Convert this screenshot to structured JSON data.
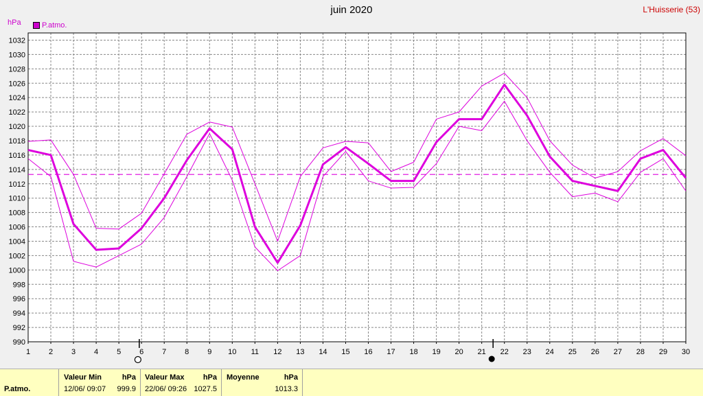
{
  "title": "juin 2020",
  "station": "L'Huisserie (53)",
  "legend": {
    "label": "P.atmo.",
    "color": "#cc00cc"
  },
  "colors": {
    "series": "#dd00dd",
    "mean_line": "#dd00dd",
    "grid": "#888888",
    "plot_bg": "#ffffff",
    "page_bg": "#f0f0f0",
    "station_text": "#cc0000",
    "stats_bg": "#ffffc0"
  },
  "chart_data": {
    "type": "line",
    "ylabel": "hPa",
    "ylim": [
      990,
      1033
    ],
    "yticks": [
      990,
      992,
      994,
      996,
      998,
      1000,
      1002,
      1004,
      1006,
      1008,
      1010,
      1012,
      1014,
      1016,
      1018,
      1020,
      1022,
      1024,
      1026,
      1028,
      1030,
      1032
    ],
    "x": [
      1,
      2,
      3,
      4,
      5,
      6,
      7,
      8,
      9,
      10,
      11,
      12,
      13,
      14,
      15,
      16,
      17,
      18,
      19,
      20,
      21,
      22,
      23,
      24,
      25,
      26,
      27,
      28,
      29,
      30
    ],
    "grid": true,
    "legend_position": "top-left",
    "series": [
      {
        "name": "P.atmo.",
        "role": "mean",
        "values": [
          1016.7,
          1016.0,
          1006.4,
          1002.8,
          1003.0,
          1005.8,
          1010.0,
          1015.3,
          1019.7,
          1016.8,
          1006.0,
          1001.0,
          1006.2,
          1014.7,
          1017.1,
          1014.8,
          1012.4,
          1012.4,
          1017.8,
          1021.0,
          1021.0,
          1025.8,
          1021.5,
          1015.8,
          1012.4,
          1011.7,
          1011.0,
          1015.5,
          1016.7,
          1012.8
        ]
      },
      {
        "role": "max",
        "values": [
          1017.9,
          1018.1,
          1013.3,
          1005.8,
          1005.7,
          1007.9,
          1013.4,
          1018.9,
          1020.6,
          1019.9,
          1012.0,
          1004.0,
          1013.0,
          1017.0,
          1017.9,
          1017.7,
          1013.7,
          1015.0,
          1021.0,
          1022.0,
          1025.6,
          1027.4,
          1024.0,
          1018.0,
          1014.6,
          1012.8,
          1013.7,
          1016.6,
          1018.3,
          1015.9
        ]
      },
      {
        "role": "min",
        "values": [
          1015.5,
          1013.0,
          1001.2,
          1000.4,
          1002.0,
          1003.6,
          1007.3,
          1013.0,
          1019.0,
          1012.5,
          1003.2,
          999.9,
          1002.0,
          1013.0,
          1016.5,
          1012.4,
          1011.4,
          1011.5,
          1014.8,
          1020.0,
          1019.4,
          1023.5,
          1018.0,
          1013.6,
          1010.2,
          1010.7,
          1009.5,
          1013.6,
          1015.5,
          1011.0
        ]
      }
    ],
    "mean_reference": 1013.3,
    "moon_phase_markers": [
      {
        "day": 5.9,
        "phase": "full-moon"
      },
      {
        "day": 21.5,
        "phase": "new-moon"
      }
    ]
  },
  "stats": {
    "row_label": "P.atmo.",
    "min": {
      "header": "Valeur Min",
      "unit": "hPa",
      "date": "12/06/  09:07",
      "value": "999.9"
    },
    "max": {
      "header": "Valeur Max",
      "unit": "hPa",
      "date": "22/06/  09:26",
      "value": "1027.5"
    },
    "avg": {
      "header": "Moyenne",
      "unit": "hPa",
      "value": "1013.3"
    }
  }
}
